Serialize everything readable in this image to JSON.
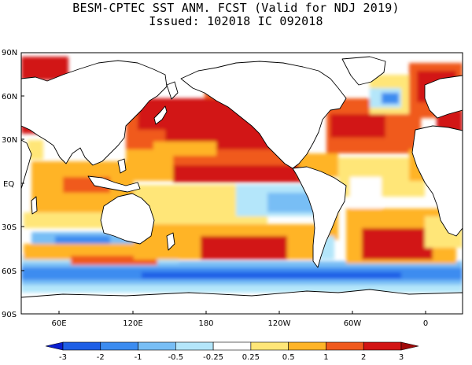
{
  "title": "BESM-CPTEC SST ANM. FCST  (Valid for NDJ 2019)",
  "subtitle": "Issued:  102018 IC 092018",
  "lat_labels": [
    "90N",
    "60N",
    "30N",
    "EQ",
    "30S",
    "60S",
    "90S"
  ],
  "lon_labels": [
    "60E",
    "120E",
    "180",
    "120W",
    "60W",
    "0"
  ],
  "colorbar": {
    "levels": [
      "-3",
      "-2",
      "-1",
      "-0.5",
      "-0.25",
      "0.25",
      "0.5",
      "1",
      "2",
      "3"
    ],
    "colors": [
      "#0a1ed0",
      "#1e5fe6",
      "#3c8cf0",
      "#78bef5",
      "#b4e6fa",
      "#ffffff",
      "#ffe678",
      "#ffb428",
      "#f05a1e",
      "#d21414",
      "#a00a0a"
    ]
  },
  "colors": {
    "land": "#ffffff",
    "coast": "#000000"
  }
}
